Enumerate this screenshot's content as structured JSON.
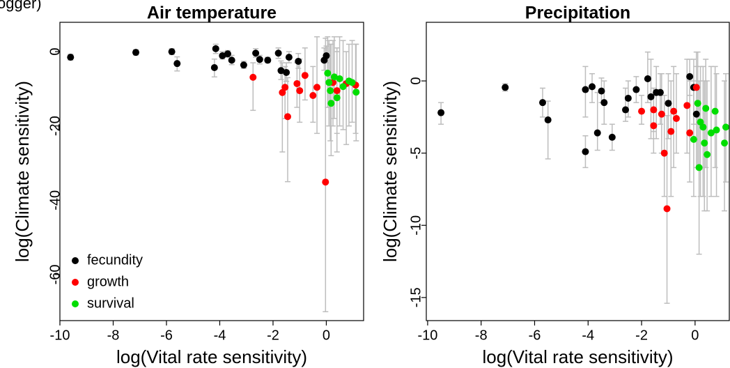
{
  "header_fragment": "ogger)",
  "chart_data": [
    {
      "type": "scatter",
      "title": "Air temperature",
      "x_label": "log(Vital rate sensitivity)",
      "y_label": "log(Climate sensitivity)",
      "xlim": [
        -10,
        1.4
      ],
      "ylim": [
        -72.4,
        7.9
      ],
      "xticks": [
        -10,
        -8,
        -6,
        -4,
        -2,
        0
      ],
      "yticks": [
        0,
        -20,
        -40,
        -60
      ],
      "legend": "bottom-left",
      "series": [
        {
          "name": "fecundity",
          "color": "#000000",
          "x": [
            -9.6,
            -7.15,
            -5.8,
            -5.6,
            -4.15,
            -4.2,
            -3.9,
            -3.7,
            -3.55,
            -3.1,
            -2.65,
            -2.5,
            -2.2,
            -1.8,
            -1.7,
            -1.5,
            -1.4,
            -1.05,
            -0.08,
            0
          ],
          "values": [
            -1.5,
            -0.2,
            0,
            -3.2,
            0.8,
            -4.3,
            -1.1,
            -0.6,
            -2.3,
            -3.6,
            -0.4,
            -2.1,
            -2.3,
            -0.4,
            -5.1,
            -5.6,
            -1.5,
            -2.6,
            -2.3,
            -1.1
          ],
          "lower": [
            -2.3,
            -0.9,
            -0.8,
            -5.2,
            -0.5,
            -6.8,
            -2,
            -1.5,
            -3.5,
            -4.5,
            -1.5,
            -3.3,
            -3,
            -1.8,
            -7.5,
            -8,
            -3,
            -4.5,
            -5,
            -3
          ],
          "upper": [
            -0.7,
            0.5,
            0.8,
            -1.4,
            2,
            -2,
            0,
            0.3,
            -1,
            -2.6,
            0.8,
            -1,
            -1.5,
            1,
            -2.5,
            -3,
            0,
            -0.5,
            1,
            1.5
          ]
        },
        {
          "name": "growth",
          "color": "#ff0000",
          "x": [
            -2.75,
            -1.65,
            -1.55,
            -1.45,
            -1.1,
            -1,
            -0.8,
            -0.5,
            -0.35,
            -0.03,
            0.25,
            0.4,
            0.75,
            1.1
          ],
          "values": [
            -6.9,
            -11,
            -9.6,
            -17.5,
            -8.6,
            -10.5,
            -6.4,
            -11.8,
            -9.6,
            -35.1,
            -8.3,
            -10.5,
            -8.6,
            -9
          ],
          "lower": [
            -15.8,
            -27,
            -18,
            -35,
            -15,
            -19,
            -13,
            -19,
            -22,
            -70,
            -20,
            -22,
            -25,
            -22
          ],
          "upper": [
            -3,
            -3,
            -4,
            -7,
            -3,
            -2,
            1,
            -4,
            4,
            3.6,
            3,
            1,
            0,
            2
          ]
        },
        {
          "name": "survival",
          "color": "#00dd00",
          "x": [
            0.05,
            0.1,
            0.15,
            0.18,
            0.3,
            0.4,
            0.5,
            0.63,
            0.85,
            0.97,
            1.12
          ],
          "values": [
            -5.8,
            -8.3,
            -10.5,
            -13.9,
            -6.8,
            -12.4,
            -7.3,
            -9.4,
            -7.9,
            -8.3,
            -10.9
          ],
          "lower": [
            -15,
            -20,
            -24,
            -28,
            -18,
            -27,
            -20,
            -21,
            -20,
            -19,
            -24
          ],
          "upper": [
            4,
            3,
            2,
            2,
            4,
            0,
            4,
            3,
            2,
            3,
            2
          ]
        }
      ]
    },
    {
      "type": "scatter",
      "title": "Precipitation",
      "x_label": "log(Vital rate sensitivity)",
      "y_label": "log(Climate sensitivity)",
      "xlim": [
        -10.05,
        1.28
      ],
      "ylim": [
        -16.6,
        4.06
      ],
      "xticks": [
        -10,
        -8,
        -6,
        -4,
        -2,
        0
      ],
      "yticks": [
        0,
        -5,
        -10,
        -15
      ],
      "series": [
        {
          "color": "#000000",
          "x": [
            -9.5,
            -7.1,
            -5.7,
            -5.5,
            -4.1,
            -4.1,
            -3.85,
            -3.65,
            -3.5,
            -3.4,
            -3.1,
            -2.6,
            -2.5,
            -2.2,
            -1.77,
            -1.65,
            -1.45,
            -1.3,
            -1,
            -0.2,
            -0.05,
            0.05
          ],
          "values": [
            -2.2,
            -0.45,
            -1.5,
            -2.7,
            -0.6,
            -4.9,
            -0.4,
            -3.6,
            -0.7,
            -1.5,
            -3.9,
            -2,
            -1.2,
            -0.6,
            0.15,
            -1.1,
            -0.8,
            -0.8,
            -1.55,
            0.3,
            -0.45,
            -2.3
          ],
          "lower": [
            -3,
            -0.7,
            -2.5,
            -5.4,
            -2.5,
            -6,
            -1.5,
            -4.8,
            -1.5,
            -3,
            -4.8,
            -2.8,
            -2.5,
            -1.5,
            -1.5,
            -4,
            -4,
            -3,
            -4,
            -1,
            -3,
            -6
          ],
          "upper": [
            -1.5,
            -0.2,
            -0.5,
            -1.4,
            1,
            -3.8,
            0.5,
            -0.8,
            0.2,
            0,
            -3,
            -0.5,
            0,
            0.3,
            2,
            1.5,
            1,
            0.5,
            0.5,
            1.5,
            1.5,
            1
          ]
        },
        {
          "color": "#ff0000",
          "x": [
            -2,
            -1.55,
            -1.55,
            -1.25,
            -1.15,
            -1.05,
            -0.9,
            -0.8,
            -0.7,
            -0.3,
            -0.2,
            0.05
          ],
          "values": [
            -2.1,
            -2,
            -3.1,
            -2.3,
            -5,
            -8.85,
            -3.5,
            -2.1,
            -2.6,
            -1.7,
            -3.6,
            -0.45
          ],
          "lower": [
            -3,
            -3.5,
            -5,
            -5,
            -8,
            -15.4,
            -8,
            -6,
            -5,
            -5,
            -7,
            -3
          ],
          "upper": [
            -1,
            -0.5,
            -1,
            0.5,
            -1,
            -2.4,
            0,
            1,
            0.5,
            1.5,
            0,
            2
          ]
        },
        {
          "color": "#00dd00",
          "x": [
            -0.05,
            0.1,
            0.15,
            0.2,
            0.3,
            0.35,
            0.4,
            0.45,
            0.6,
            0.75,
            0.8,
            1.1,
            1.15
          ],
          "values": [
            -4.05,
            -1.55,
            -6,
            -2.85,
            -3.2,
            -4.3,
            -1.9,
            -5.1,
            -3.6,
            -2.1,
            -3.4,
            -4.3,
            -3.2
          ],
          "lower": [
            -8,
            -6,
            -12,
            -8,
            -8,
            -9,
            -6,
            -9,
            -8,
            -6,
            -8,
            -9,
            -7
          ],
          "upper": [
            0,
            2,
            0,
            1,
            1,
            0,
            1.5,
            0,
            1,
            1,
            0.5,
            0,
            0.5
          ]
        }
      ]
    }
  ]
}
